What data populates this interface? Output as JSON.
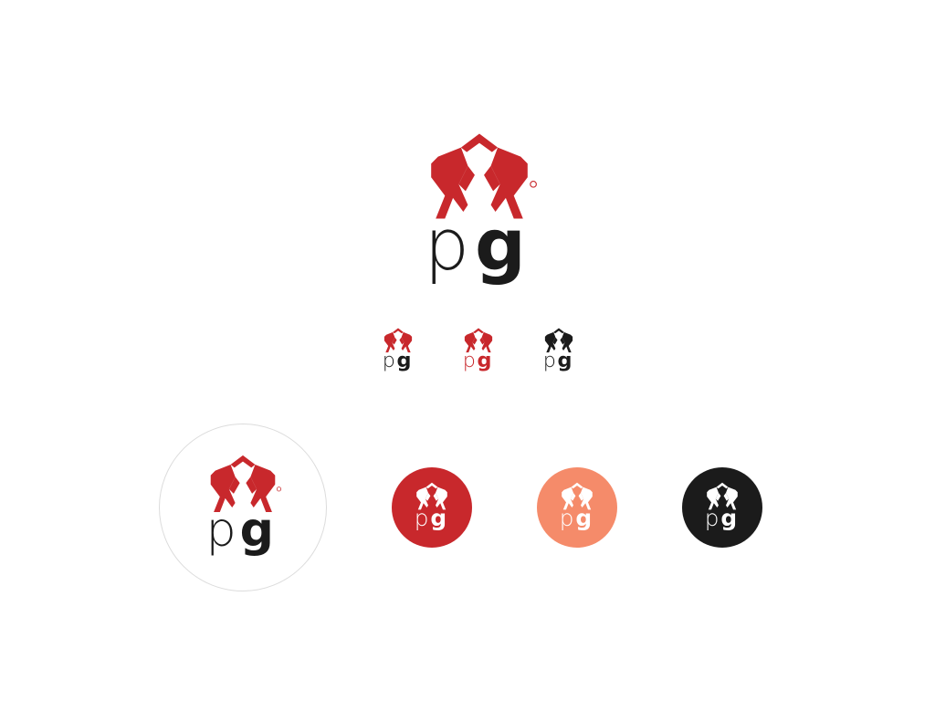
{
  "brand": {
    "wordmark": "pg",
    "registered_mark": "®"
  },
  "colors": {
    "red": "#c8282c",
    "dark": "#1b1b1b",
    "salmon": "#f58b6a",
    "white": "#ffffff",
    "outline": "#dcdcdc"
  },
  "logo_variants": [
    {
      "name": "primary",
      "symbol_color": "#c8282c",
      "p_color": "#1b1b1b",
      "g_color": "#1b1b1b",
      "registered": true
    },
    {
      "name": "small-red-dark",
      "symbol_color": "#c8282c",
      "p_color": "#1b1b1b",
      "g_color": "#1b1b1b"
    },
    {
      "name": "small-all-red",
      "symbol_color": "#c8282c",
      "p_color": "#c8282c",
      "g_color": "#c8282c"
    },
    {
      "name": "small-all-dark",
      "symbol_color": "#1b1b1b",
      "p_color": "#1b1b1b",
      "g_color": "#1b1b1b"
    }
  ],
  "badges": [
    {
      "name": "white-outline",
      "background": "#ffffff",
      "symbol_color": "#c8282c",
      "text_color": "#1b1b1b",
      "registered": true
    },
    {
      "name": "red",
      "background": "#c8282c",
      "symbol_color": "#ffffff",
      "text_color": "#ffffff"
    },
    {
      "name": "salmon",
      "background": "#f58b6a",
      "symbol_color": "#ffffff",
      "text_color": "#ffffff"
    },
    {
      "name": "black",
      "background": "#1b1b1b",
      "symbol_color": "#ffffff",
      "text_color": "#ffffff"
    }
  ]
}
